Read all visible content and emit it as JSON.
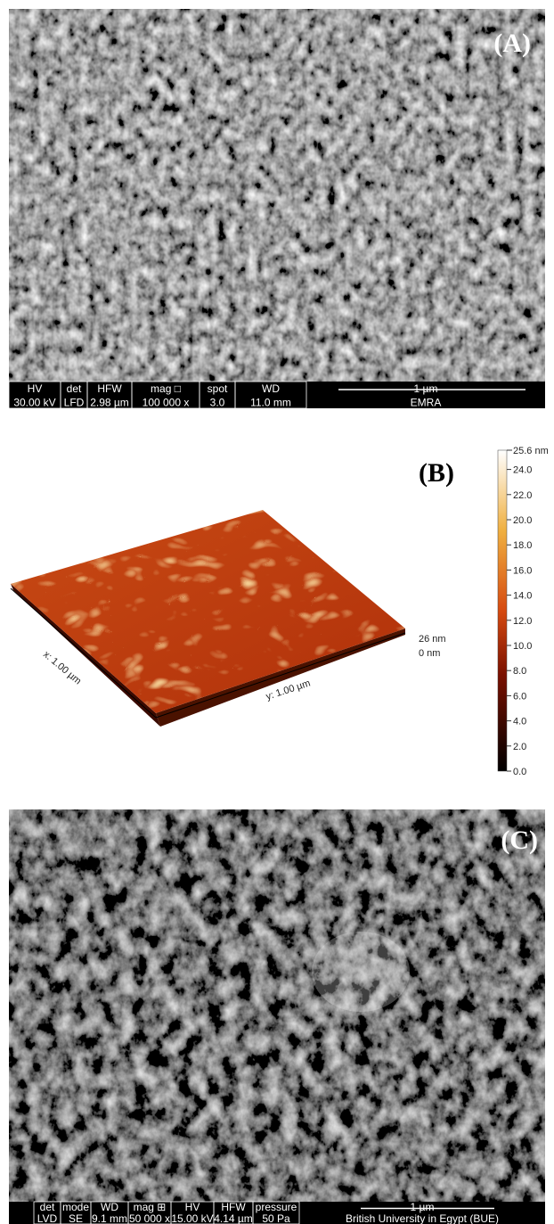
{
  "panels": [
    {
      "label": "(A)",
      "info_bar": {
        "headers": [
          "HV",
          "det",
          "HFW",
          "mag □",
          "spot",
          "WD"
        ],
        "values": [
          "30.00 kV",
          "LFD",
          "2.98 µm",
          "100 000 x",
          "3.0",
          "11.0 mm"
        ],
        "scale_label": "1 µm",
        "facility": "EMRA"
      }
    },
    {
      "label": "(B)",
      "x_axis": "x: 1.00 µm",
      "y_axis": "y: 1.00 µm",
      "z_max": "26 nm",
      "z_min": "0 nm",
      "colorbar_max": "25.6 nm",
      "colorbar_ticks": [
        "0.0",
        "2.0",
        "4.0",
        "6.0",
        "8.0",
        "10.0",
        "12.0",
        "14.0",
        "16.0",
        "18.0",
        "20.0",
        "22.0",
        "24.0"
      ]
    },
    {
      "label": "(C)",
      "info_bar": {
        "headers": [
          "det",
          "mode",
          "WD",
          "mag ⊞",
          "HV",
          "HFW",
          "pressure"
        ],
        "values": [
          "LVD",
          "SE",
          "9.1 mm",
          "50 000 x",
          "15.00 kV",
          "4.14 µm",
          "50 Pa"
        ],
        "scale_label": "1 µm",
        "facility": "British University in Egypt (BUE)"
      }
    }
  ]
}
